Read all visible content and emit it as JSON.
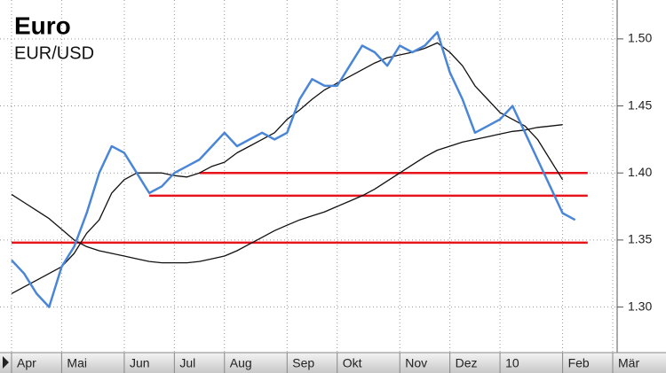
{
  "chart_data": {
    "type": "line",
    "title": "Euro",
    "subtitle": "EUR/USD",
    "categories": [
      "Apr",
      null,
      null,
      null,
      "Mai",
      null,
      null,
      null,
      null,
      "Jun",
      null,
      null,
      null,
      "Jul",
      null,
      null,
      null,
      "Aug",
      null,
      null,
      null,
      null,
      "Sep",
      null,
      null,
      null,
      "Okt",
      null,
      null,
      null,
      null,
      "Nov",
      null,
      null,
      null,
      "Dez",
      null,
      null,
      null,
      "10",
      null,
      null,
      null,
      null,
      "Feb",
      null,
      null,
      null,
      "Mär"
    ],
    "series": [
      {
        "color": "#e8141c",
        "values": [
          1.348,
          1.348,
          1.348,
          1.348,
          1.348,
          1.348,
          1.348,
          1.348,
          1.348,
          1.348,
          1.348,
          1.348,
          1.348,
          1.348,
          1.348,
          1.348,
          1.348,
          1.348,
          1.348,
          1.348,
          1.348,
          1.348,
          1.348,
          1.348,
          1.348,
          1.348,
          1.348,
          1.348,
          1.348,
          1.348,
          1.348,
          1.348,
          1.348,
          1.348,
          1.348,
          1.348,
          1.348,
          1.348,
          1.348,
          1.348,
          1.348,
          1.348,
          1.348,
          1.348,
          1.348,
          1.348,
          1.348,
          null,
          null
        ]
      },
      {
        "color": "#e8141c",
        "values": [
          null,
          null,
          null,
          null,
          null,
          null,
          null,
          null,
          null,
          null,
          null,
          1.383,
          1.383,
          1.383,
          1.383,
          1.383,
          1.383,
          1.383,
          1.383,
          1.383,
          1.383,
          1.383,
          1.383,
          1.383,
          1.383,
          1.383,
          1.383,
          1.383,
          1.383,
          1.383,
          1.383,
          1.383,
          1.383,
          1.383,
          1.383,
          1.383,
          1.383,
          1.383,
          1.383,
          1.383,
          1.383,
          1.383,
          1.383,
          1.383,
          1.383,
          1.383,
          1.383,
          null,
          null
        ]
      },
      {
        "color": "#e8141c",
        "values": [
          null,
          null,
          null,
          null,
          null,
          null,
          null,
          null,
          null,
          null,
          null,
          null,
          null,
          null,
          null,
          1.4,
          1.4,
          1.4,
          1.4,
          1.4,
          1.4,
          1.4,
          1.4,
          1.4,
          1.4,
          1.4,
          1.4,
          1.4,
          1.4,
          1.4,
          1.4,
          1.4,
          1.4,
          1.4,
          1.4,
          1.4,
          1.4,
          1.4,
          1.4,
          1.4,
          1.4,
          1.4,
          1.4,
          1.4,
          1.4,
          1.4,
          1.4,
          null,
          null
        ]
      },
      {
        "color": "#111111",
        "values": [
          1.384,
          1.378,
          1.372,
          1.366,
          1.358,
          1.35,
          1.345,
          1.342,
          1.34,
          1.338,
          1.336,
          1.334,
          1.333,
          1.333,
          1.333,
          1.334,
          1.336,
          1.338,
          1.342,
          1.347,
          1.352,
          1.357,
          1.361,
          1.365,
          1.368,
          1.371,
          1.375,
          1.379,
          1.383,
          1.388,
          1.394,
          1.4,
          1.406,
          1.412,
          1.417,
          1.42,
          1.423,
          1.425,
          1.427,
          1.429,
          1.431,
          1.432,
          1.434,
          1.435,
          1.436,
          null,
          null,
          null,
          null
        ]
      },
      {
        "color": "#111111",
        "values": [
          1.31,
          1.315,
          1.32,
          1.325,
          1.33,
          1.34,
          1.355,
          1.365,
          1.385,
          1.395,
          1.4,
          1.4,
          1.4,
          1.398,
          1.397,
          1.4,
          1.405,
          1.408,
          1.415,
          1.42,
          1.425,
          1.43,
          1.44,
          1.447,
          1.455,
          1.462,
          1.467,
          1.472,
          1.477,
          1.482,
          1.486,
          1.488,
          1.49,
          1.493,
          1.497,
          1.49,
          1.48,
          1.465,
          1.455,
          1.445,
          1.44,
          1.435,
          1.425,
          1.41,
          1.395,
          null,
          null,
          null,
          null
        ]
      },
      {
        "color": "#4a86d8",
        "values": [
          1.335,
          1.325,
          1.31,
          1.3,
          1.33,
          1.345,
          1.37,
          1.4,
          1.42,
          1.415,
          1.4,
          1.385,
          1.39,
          1.4,
          1.405,
          1.41,
          1.42,
          1.43,
          1.42,
          1.425,
          1.43,
          1.425,
          1.43,
          1.455,
          1.47,
          1.465,
          1.465,
          1.48,
          1.495,
          1.49,
          1.48,
          1.495,
          1.49,
          1.495,
          1.505,
          1.475,
          1.455,
          1.43,
          1.435,
          1.44,
          1.45,
          1.43,
          1.41,
          1.39,
          1.37,
          1.365,
          null,
          null,
          null
        ]
      }
    ],
    "ylim": [
      1.266,
      1.529
    ],
    "yticks": [
      {
        "value": 1.3,
        "label": "1.30"
      },
      1.35,
      {
        "value": 1.4,
        "label": "1.40"
      },
      1.45,
      {
        "value": 1.5,
        "label": "1.50"
      }
    ],
    "grid": true
  }
}
